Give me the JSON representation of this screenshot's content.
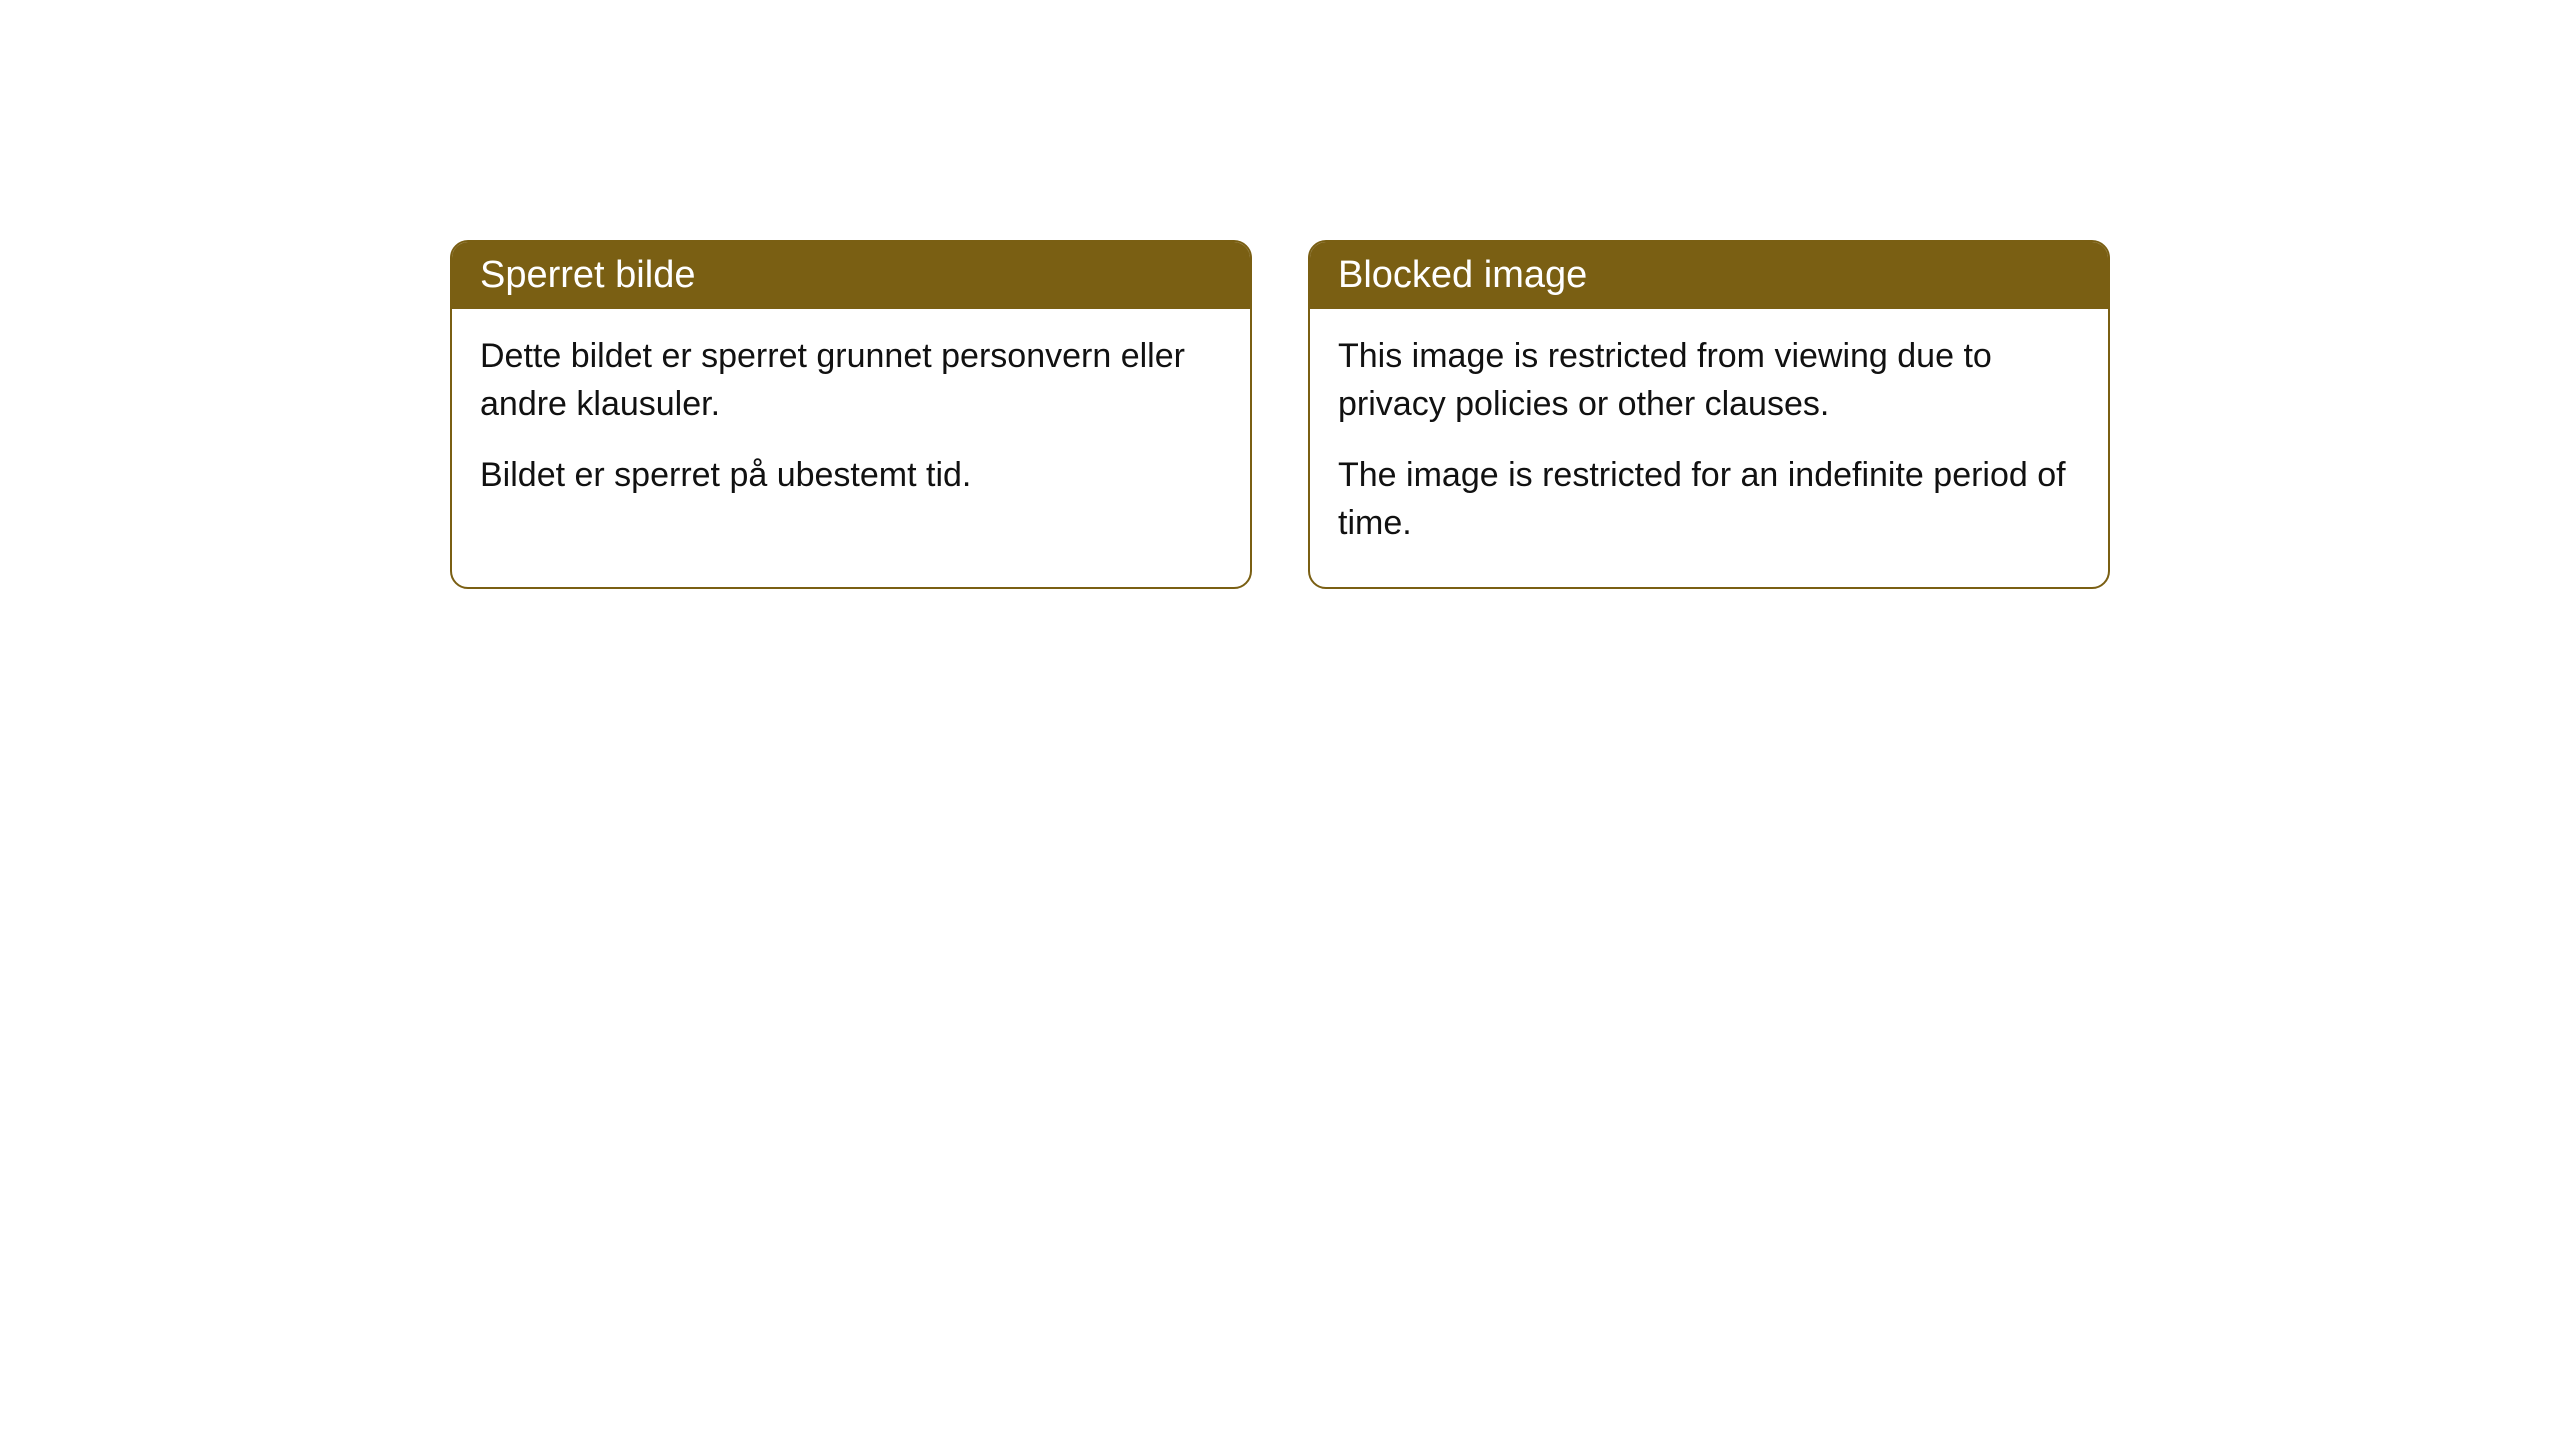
{
  "cards": [
    {
      "title": "Sperret bilde",
      "paragraph1": "Dette bildet er sperret grunnet personvern eller andre klausuler.",
      "paragraph2": "Bildet er sperret på ubestemt tid."
    },
    {
      "title": "Blocked image",
      "paragraph1": "This image is restricted from viewing due to privacy policies or other clauses.",
      "paragraph2": "The image is restricted for an indefinite period of time."
    }
  ],
  "styling": {
    "header_bg_color": "#7a5f13",
    "header_text_color": "#ffffff",
    "border_color": "#7a5f13",
    "body_bg_color": "#ffffff",
    "body_text_color": "#111111",
    "border_radius": "18px",
    "header_fontsize": "38px",
    "body_fontsize": "34px"
  }
}
